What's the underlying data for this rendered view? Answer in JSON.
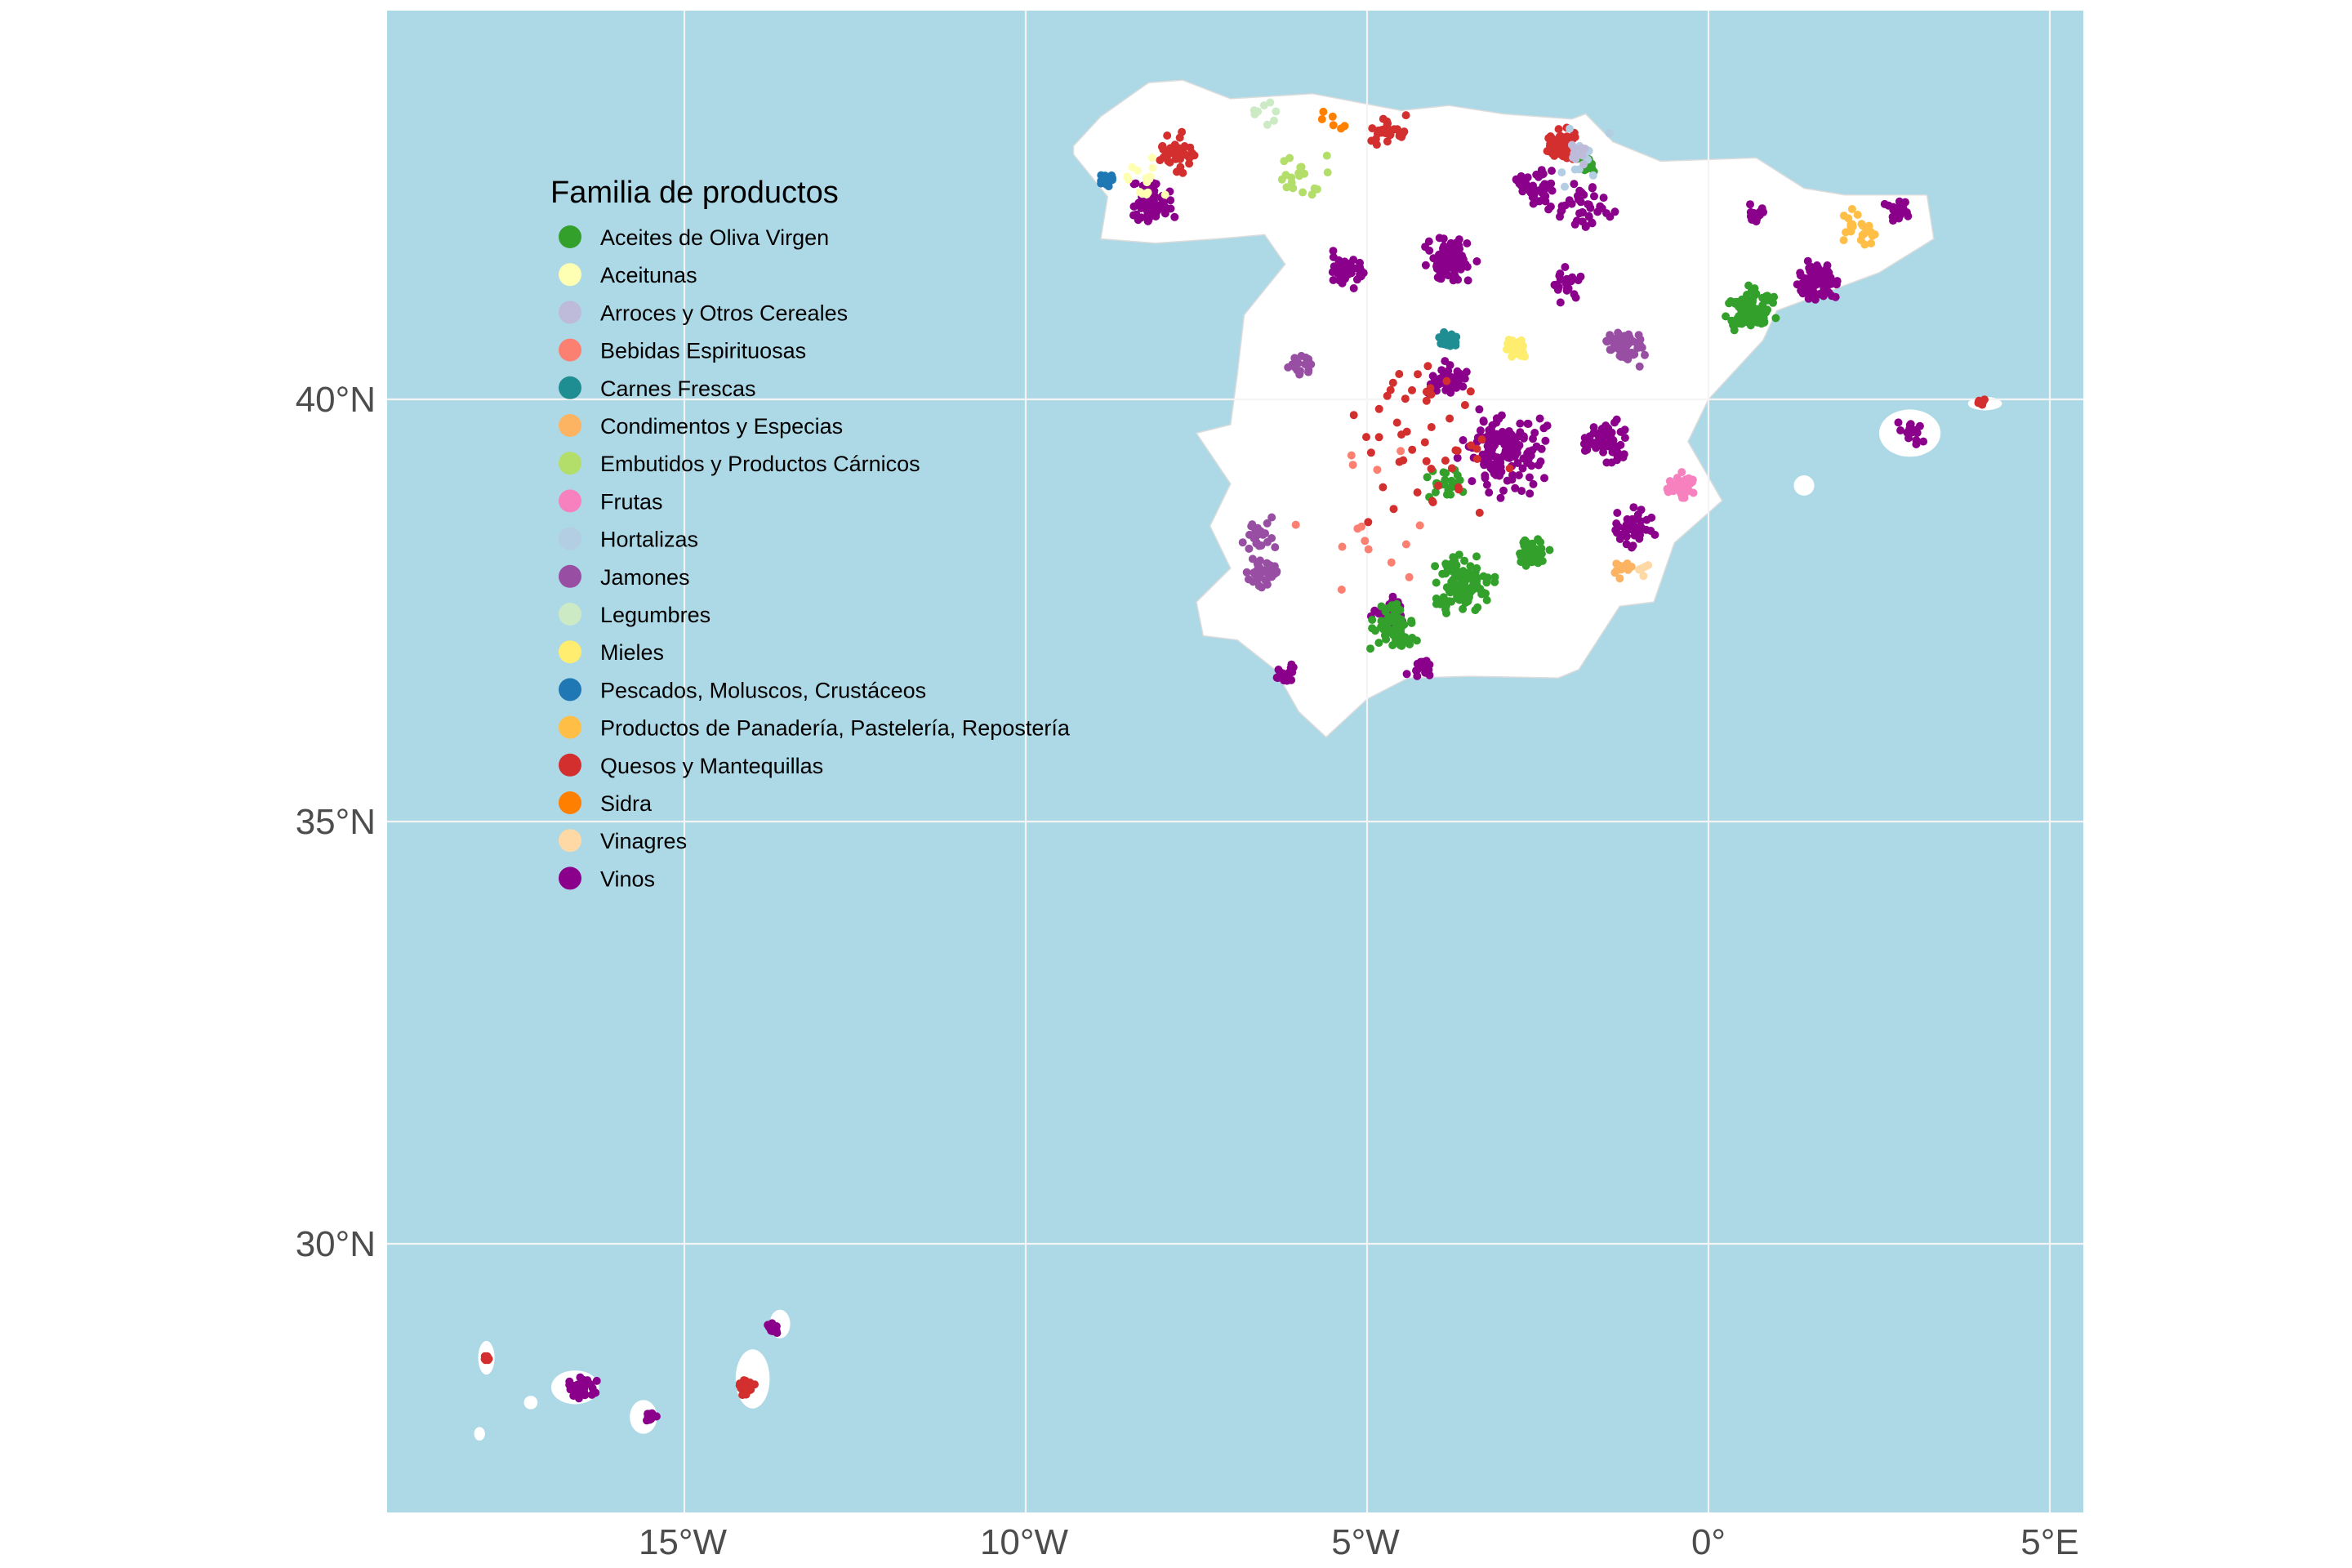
{
  "chart_data": {
    "type": "scatter",
    "title": "",
    "projection": "geographic",
    "xlim": [
      -19.35,
      5.49
    ],
    "ylim": [
      26.82,
      44.6
    ],
    "x_ticks": [
      -15,
      -10,
      -5,
      0,
      5
    ],
    "y_ticks": [
      30,
      35,
      40
    ],
    "x_tick_labels": [
      "15°W",
      "10°W",
      "5°W",
      "0°",
      "5°E"
    ],
    "y_tick_labels": [
      "30°N",
      "35°N",
      "40°N"
    ],
    "grid": true,
    "colors": {
      "ocean": "#ADD8E6",
      "land": "#FFFFFF",
      "grid": "#F4F4F4"
    },
    "legend": {
      "title": "Familia de productos",
      "placement": "top-left inside",
      "items": [
        {
          "label": "Aceites de Oliva Virgen",
          "color": "#33A02C"
        },
        {
          "label": "Aceitunas",
          "color": "#FFFFB3"
        },
        {
          "label": "Arroces y Otros Cereales",
          "color": "#BEBADA"
        },
        {
          "label": "Bebidas Espirituosas",
          "color": "#FB8072"
        },
        {
          "label": "Carnes Frescas",
          "color": "#1F8E92"
        },
        {
          "label": "Condimentos y Especias",
          "color": "#FDB462"
        },
        {
          "label": "Embutidos y Productos Cárnicos",
          "color": "#B3DE69"
        },
        {
          "label": "Frutas",
          "color": "#F781BF"
        },
        {
          "label": "Hortalizas",
          "color": "#B3CDE3"
        },
        {
          "label": "Jamones",
          "color": "#984EA3"
        },
        {
          "label": "Legumbres",
          "color": "#CCEBC5"
        },
        {
          "label": "Mieles",
          "color": "#FFED6F"
        },
        {
          "label": "Pescados, Moluscos, Crustáceos",
          "color": "#1F78B4"
        },
        {
          "label": "Productos de Panadería, Pastelería, Repostería",
          "color": "#FFBF47"
        },
        {
          "label": "Quesos y Mantequillas",
          "color": "#D32F2F"
        },
        {
          "label": "Sidra",
          "color": "#FF7F00"
        },
        {
          "label": "Vinagres",
          "color": "#FED9A6"
        },
        {
          "label": "Vinos",
          "color": "#8B008B"
        }
      ]
    },
    "clusters": [
      {
        "family": 17,
        "lon": -3.8,
        "lat": 41.65,
        "spread": 0.35,
        "n": 90
      },
      {
        "family": 17,
        "lon": -3.0,
        "lat": 39.4,
        "spread": 0.6,
        "n": 160
      },
      {
        "family": 17,
        "lon": -1.5,
        "lat": 39.5,
        "spread": 0.35,
        "n": 60
      },
      {
        "family": 17,
        "lon": -2.5,
        "lat": 42.5,
        "spread": 0.3,
        "n": 50
      },
      {
        "family": 17,
        "lon": -5.3,
        "lat": 41.5,
        "spread": 0.3,
        "n": 45
      },
      {
        "family": 17,
        "lon": -8.2,
        "lat": 42.3,
        "spread": 0.35,
        "n": 60
      },
      {
        "family": 17,
        "lon": 1.6,
        "lat": 41.4,
        "spread": 0.35,
        "n": 70
      },
      {
        "family": 17,
        "lon": 2.8,
        "lat": 42.2,
        "spread": 0.2,
        "n": 25
      },
      {
        "family": 17,
        "lon": -6.2,
        "lat": 36.75,
        "spread": 0.15,
        "n": 20
      },
      {
        "family": 17,
        "lon": -3.8,
        "lat": 40.2,
        "spread": 0.3,
        "n": 40
      },
      {
        "family": 17,
        "lon": -1.1,
        "lat": 38.5,
        "spread": 0.3,
        "n": 40
      },
      {
        "family": 17,
        "lon": -4.7,
        "lat": 37.5,
        "spread": 0.25,
        "n": 25
      },
      {
        "family": 17,
        "lon": -1.8,
        "lat": 42.3,
        "spread": 0.4,
        "n": 40
      },
      {
        "family": 17,
        "lon": -2.1,
        "lat": 41.4,
        "spread": 0.3,
        "n": 25
      },
      {
        "family": 17,
        "lon": -4.2,
        "lat": 36.8,
        "spread": 0.2,
        "n": 15
      },
      {
        "family": 17,
        "lon": -16.5,
        "lat": 28.3,
        "spread": 0.2,
        "n": 40
      },
      {
        "family": 17,
        "lon": -15.5,
        "lat": 27.95,
        "spread": 0.1,
        "n": 20
      },
      {
        "family": 17,
        "lon": -13.7,
        "lat": 29.0,
        "spread": 0.1,
        "n": 12
      },
      {
        "family": 17,
        "lon": 0.7,
        "lat": 42.2,
        "spread": 0.15,
        "n": 15
      },
      {
        "family": 17,
        "lon": 3.0,
        "lat": 39.6,
        "spread": 0.2,
        "n": 15
      },
      {
        "family": 0,
        "lon": -3.6,
        "lat": 37.8,
        "spread": 0.45,
        "n": 110
      },
      {
        "family": 0,
        "lon": -4.6,
        "lat": 37.3,
        "spread": 0.35,
        "n": 70
      },
      {
        "family": 0,
        "lon": 0.6,
        "lat": 41.1,
        "spread": 0.35,
        "n": 90
      },
      {
        "family": 0,
        "lon": -2.6,
        "lat": 38.2,
        "spread": 0.25,
        "n": 40
      },
      {
        "family": 0,
        "lon": -3.8,
        "lat": 39.0,
        "spread": 0.3,
        "n": 25
      },
      {
        "family": 0,
        "lon": -1.8,
        "lat": 42.8,
        "spread": 0.2,
        "n": 20
      },
      {
        "family": 14,
        "lon": -2.2,
        "lat": 43.0,
        "spread": 0.25,
        "n": 70
      },
      {
        "family": 14,
        "lon": -4.7,
        "lat": 43.2,
        "spread": 0.25,
        "n": 30
      },
      {
        "family": 14,
        "lon": -7.8,
        "lat": 42.9,
        "spread": 0.35,
        "n": 40
      },
      {
        "family": 14,
        "lon": -4.0,
        "lat": 39.5,
        "spread": 1.2,
        "n": 50
      },
      {
        "family": 14,
        "lon": 4.0,
        "lat": 39.97,
        "spread": 0.08,
        "n": 10
      },
      {
        "family": 14,
        "lon": -14.1,
        "lat": 28.3,
        "spread": 0.12,
        "n": 25
      },
      {
        "family": 14,
        "lon": -17.9,
        "lat": 28.65,
        "spread": 0.06,
        "n": 10
      },
      {
        "family": 9,
        "lon": -1.2,
        "lat": 40.6,
        "spread": 0.3,
        "n": 55
      },
      {
        "family": 9,
        "lon": -6.5,
        "lat": 37.95,
        "spread": 0.25,
        "n": 35
      },
      {
        "family": 9,
        "lon": -6.0,
        "lat": 40.4,
        "spread": 0.2,
        "n": 20
      },
      {
        "family": 9,
        "lon": -6.6,
        "lat": 38.4,
        "spread": 0.25,
        "n": 25
      },
      {
        "family": 4,
        "lon": -3.8,
        "lat": 40.7,
        "spread": 0.15,
        "n": 35
      },
      {
        "family": 11,
        "lon": -2.8,
        "lat": 40.6,
        "spread": 0.2,
        "n": 30
      },
      {
        "family": 7,
        "lon": -0.4,
        "lat": 39.0,
        "spread": 0.25,
        "n": 40
      },
      {
        "family": 12,
        "lon": -8.8,
        "lat": 42.6,
        "spread": 0.12,
        "n": 15
      },
      {
        "family": 13,
        "lon": 2.2,
        "lat": 42.0,
        "spread": 0.3,
        "n": 25
      },
      {
        "family": 6,
        "lon": -6.0,
        "lat": 42.6,
        "spread": 0.5,
        "n": 20
      },
      {
        "family": 8,
        "lon": -1.8,
        "lat": 42.9,
        "spread": 0.5,
        "n": 15
      },
      {
        "family": 5,
        "lon": -1.2,
        "lat": 38.0,
        "spread": 0.2,
        "n": 10
      },
      {
        "family": 1,
        "lon": -8.3,
        "lat": 42.6,
        "spread": 0.3,
        "n": 15
      },
      {
        "family": 2,
        "lon": -1.9,
        "lat": 42.9,
        "spread": 0.2,
        "n": 10
      },
      {
        "family": 3,
        "lon": -5.0,
        "lat": 38.5,
        "spread": 1.5,
        "n": 15
      },
      {
        "family": 10,
        "lon": -6.5,
        "lat": 43.4,
        "spread": 0.3,
        "n": 8
      },
      {
        "family": 15,
        "lon": -5.5,
        "lat": 43.3,
        "spread": 0.2,
        "n": 6
      },
      {
        "family": 16,
        "lon": -1.0,
        "lat": 38.0,
        "spread": 0.2,
        "n": 6
      }
    ]
  }
}
